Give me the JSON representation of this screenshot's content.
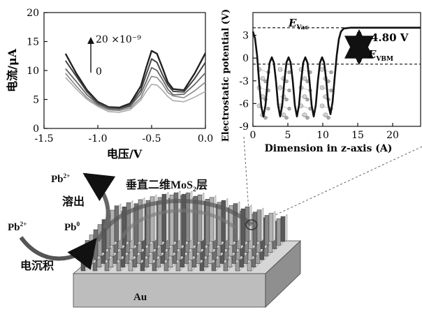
{
  "colors": {
    "ink": "#111111",
    "mid": "#777777",
    "light": "#bbbbbb",
    "gold": "#b9b9b9"
  },
  "chart_data": [
    {
      "type": "line",
      "xlabel": "电压/V",
      "ylabel": "电流/μA",
      "xlim": [
        -1.5,
        0.0
      ],
      "ylim": [
        0,
        20
      ],
      "x_ticks": [
        "-1.5",
        "-1.0",
        "-0.5",
        "0.0"
      ],
      "y_ticks": [
        "0",
        "5",
        "10",
        "15",
        "20"
      ],
      "annotation_top": "20 ×10⁻⁹",
      "annotation_bottom": "0",
      "x": [
        -1.3,
        -1.2,
        -1.1,
        -1.0,
        -0.9,
        -0.8,
        -0.7,
        -0.6,
        -0.55,
        -0.5,
        -0.45,
        -0.4,
        -0.35,
        -0.3,
        -0.2,
        -0.1,
        0.0
      ],
      "series": [
        {
          "values": [
            12.9,
            9.5,
            6.6,
            4.6,
            3.7,
            3.6,
            4.3,
            7.3,
            10.5,
            13.4,
            12.9,
            10.5,
            8.0,
            6.8,
            6.6,
            9.5,
            13.0
          ]
        },
        {
          "values": [
            11.7,
            9.0,
            6.3,
            4.4,
            3.6,
            3.4,
            4.0,
            6.6,
            9.3,
            12.0,
            11.4,
            9.3,
            7.5,
            6.4,
            6.3,
            8.6,
            11.4
          ]
        },
        {
          "values": [
            10.3,
            8.1,
            5.8,
            4.2,
            3.4,
            3.3,
            3.8,
            6.0,
            8.1,
            10.5,
            10.0,
            8.5,
            6.8,
            5.8,
            5.9,
            7.6,
            9.6
          ]
        },
        {
          "values": [
            9.5,
            7.3,
            5.3,
            4.0,
            3.2,
            3.1,
            3.5,
            5.3,
            7.3,
            9.0,
            8.8,
            7.7,
            6.2,
            5.6,
            5.3,
            6.5,
            8.0
          ]
        },
        {
          "values": [
            8.8,
            6.8,
            5.0,
            3.8,
            2.9,
            2.8,
            3.2,
            4.9,
            6.4,
            7.6,
            7.5,
            6.6,
            5.5,
            4.8,
            4.6,
            5.4,
            6.4
          ]
        }
      ]
    },
    {
      "type": "line",
      "xlabel": "Dimension in z-axis (A)",
      "ylabel": "Electrostatic potential (V)",
      "xlim": [
        0,
        24
      ],
      "ylim": [
        -9,
        6
      ],
      "x_ticks": [
        "0",
        "5",
        "10",
        "15",
        "20"
      ],
      "y_ticks": [
        "3",
        "0",
        "-3",
        "-6",
        "-9"
      ],
      "evac_level": 4.0,
      "evbm_level": -0.8,
      "gap_label": "4.80 V",
      "evac_label": "E",
      "evac_sub": "Vac",
      "evbm_label": "E",
      "evbm_sub": "VBM",
      "x": [
        0.0,
        0.3,
        0.6,
        0.9,
        1.2,
        1.5,
        1.8,
        2.1,
        2.4,
        2.7,
        3.0,
        3.3,
        3.6,
        3.9,
        4.2,
        4.5,
        4.8,
        5.1,
        5.4,
        5.7,
        6.0,
        6.3,
        6.6,
        6.9,
        7.2,
        7.5,
        7.8,
        8.1,
        8.4,
        8.7,
        9.0,
        9.3,
        9.6,
        9.9,
        10.2,
        10.5,
        10.8,
        11.1,
        11.4,
        11.7,
        12.0,
        12.3,
        12.6,
        13.0,
        14.0,
        16.0,
        18.0,
        20.0,
        22.0,
        24.0
      ],
      "series": [
        {
          "values": [
            3.5,
            2.6,
            0.3,
            -3.3,
            -6.4,
            -7.7,
            -6.2,
            -3.0,
            -0.6,
            0.1,
            -0.6,
            -3.0,
            -6.2,
            -7.7,
            -6.2,
            -3.0,
            -0.6,
            0.1,
            -0.6,
            -3.0,
            -6.2,
            -7.7,
            -6.2,
            -3.0,
            -0.6,
            0.1,
            -0.6,
            -3.0,
            -6.2,
            -7.7,
            -6.2,
            -3.0,
            -0.6,
            0.1,
            -0.6,
            -3.0,
            -6.2,
            -7.4,
            -5.8,
            -2.6,
            0.4,
            2.5,
            3.5,
            3.9,
            4.0,
            4.0,
            4.0,
            4.0,
            4.0,
            4.0
          ]
        }
      ]
    }
  ],
  "labels": {
    "au": "Au",
    "layer": "垂直二维MoS",
    "layer_sub": "2",
    "layer_end": "层",
    "pb_top": "Pb",
    "pb_top_sup": "2+",
    "dissolve": "溶出",
    "pb_left": "Pb",
    "pb_left_sup": "2+",
    "pb_zero": "Pb",
    "pb_zero_sup": "0",
    "deposit": "电沉积"
  }
}
